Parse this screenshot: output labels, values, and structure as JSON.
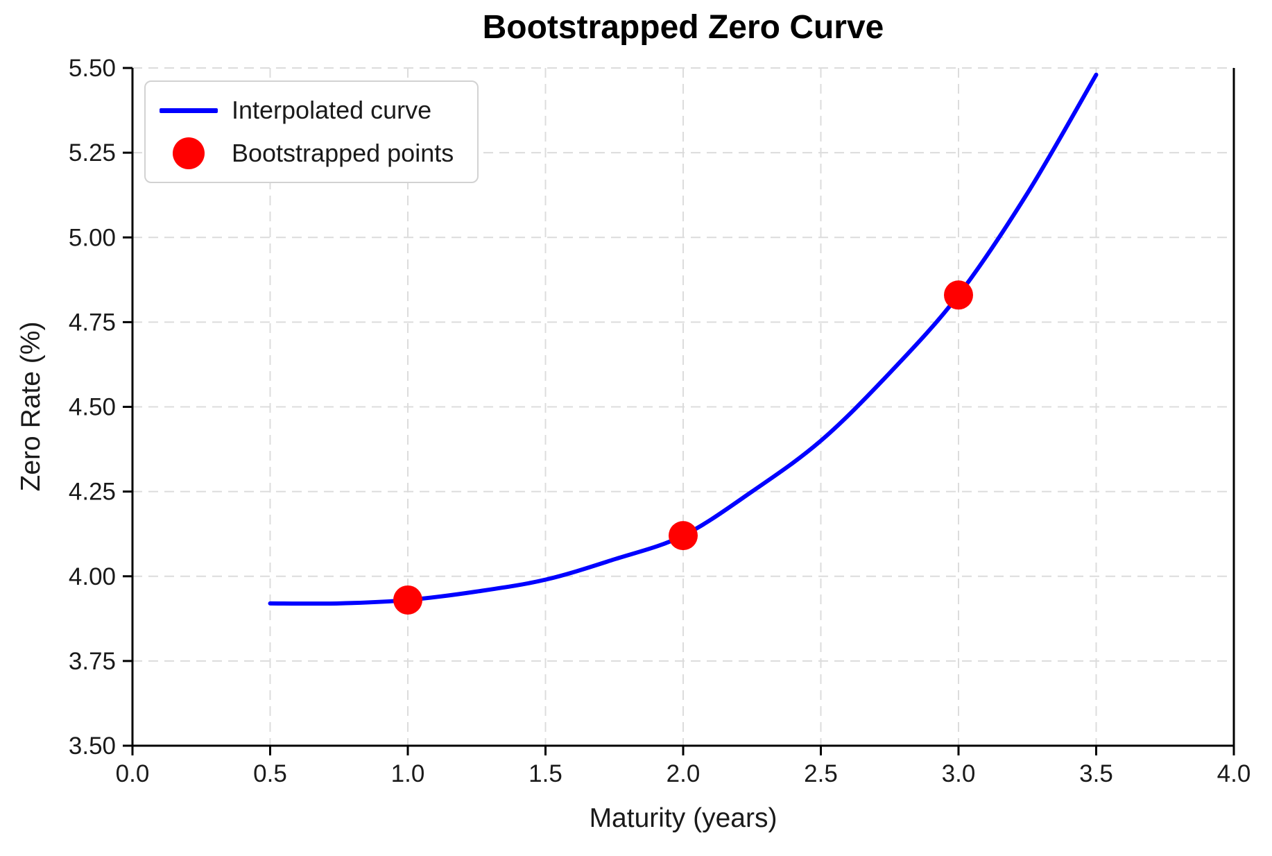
{
  "figure": {
    "background": "#ffffff"
  },
  "chart_data": {
    "type": "line",
    "title": "Bootstrapped Zero Curve",
    "xlabel": "Maturity (years)",
    "ylabel": "Zero Rate (%)",
    "xlim": [
      0.0,
      4.0
    ],
    "ylim": [
      3.5,
      5.5
    ],
    "x_tick_values": [
      0,
      0.5,
      1,
      1.5,
      2,
      2.5,
      3,
      3.5,
      4
    ],
    "x_tick_labels": [
      "0.0",
      "0.5",
      "1.0",
      "1.5",
      "2.0",
      "2.5",
      "3.0",
      "3.5",
      "4.0"
    ],
    "y_tick_values": [
      3.5,
      3.75,
      4,
      4.25,
      4.5,
      4.75,
      5,
      5.25,
      5.5
    ],
    "y_tick_labels": [
      "3.50",
      "3.75",
      "4.00",
      "4.25",
      "4.50",
      "4.75",
      "5.00",
      "5.25",
      "5.50"
    ],
    "grid": {
      "visible": true,
      "style": "dashed",
      "color": "#dcdcdc"
    },
    "legend": {
      "position": "upper-left",
      "entries": [
        "Interpolated curve",
        "Bootstrapped points"
      ]
    },
    "series": [
      {
        "name": "Interpolated curve",
        "type": "line",
        "color": "#0000ff",
        "x": [
          0.5,
          0.75,
          1.0,
          1.25,
          1.5,
          1.75,
          2.0,
          2.25,
          2.5,
          2.75,
          3.0,
          3.25,
          3.5
        ],
        "y": [
          3.92,
          3.92,
          3.93,
          3.955,
          3.99,
          4.05,
          4.12,
          4.25,
          4.4,
          4.6,
          4.83,
          5.13,
          5.48
        ]
      },
      {
        "name": "Bootstrapped points",
        "type": "scatter",
        "color": "#ff0000",
        "x": [
          1.0,
          2.0,
          3.0
        ],
        "y": [
          3.93,
          4.12,
          4.83
        ]
      }
    ],
    "style": {
      "line_width": 6,
      "marker_radius": 21,
      "axis_color": "#000000",
      "text_color": "#1a1a1a",
      "legend_border": "#d2d2d2"
    }
  }
}
